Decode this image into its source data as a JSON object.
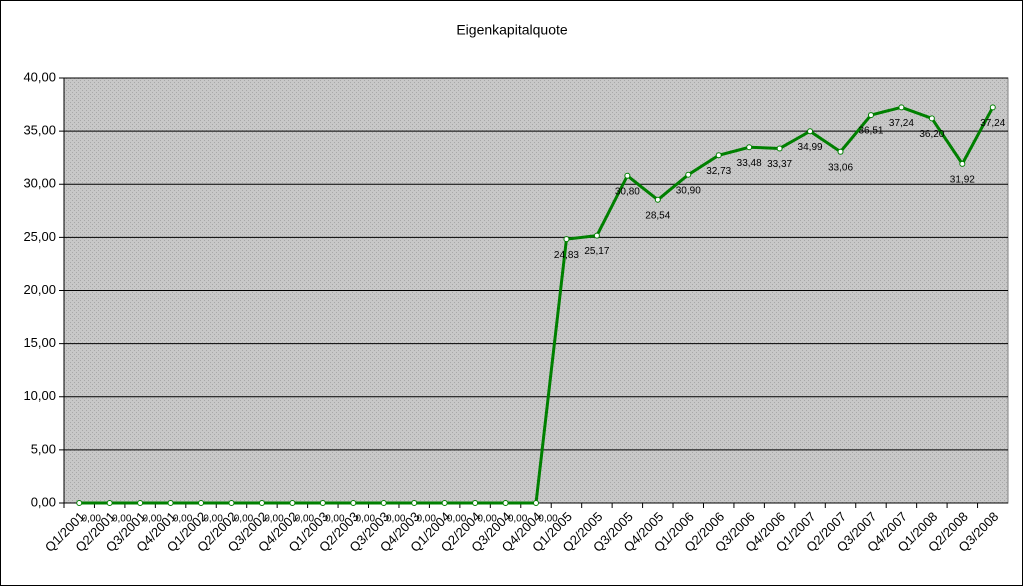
{
  "chart_data": {
    "type": "line",
    "title": "Eigenkapitalquote",
    "categories": [
      "Q1/2001",
      "Q2/2001",
      "Q3/2001",
      "Q4/2001",
      "Q1/2002",
      "Q2/2002",
      "Q3/2002",
      "Q4/2002",
      "Q1/2003",
      "Q2/2003",
      "Q3/2003",
      "Q4/2003",
      "Q1/2004",
      "Q2/2004",
      "Q3/2004",
      "Q4/2004",
      "Q1/2005",
      "Q2/2005",
      "Q3/2005",
      "Q4/2005",
      "Q1/2006",
      "Q2/2006",
      "Q3/2006",
      "Q4/2006",
      "Q1/2007",
      "Q2/2007",
      "Q3/2007",
      "Q4/2007",
      "Q1/2008",
      "Q2/2008",
      "Q3/2008"
    ],
    "values": [
      0,
      0,
      0,
      0,
      0,
      0,
      0,
      0,
      0,
      0,
      0,
      0,
      0,
      0,
      0,
      0,
      24.83,
      25.17,
      30.8,
      28.54,
      30.9,
      32.73,
      33.48,
      33.37,
      34.99,
      33.06,
      36.51,
      37.24,
      36.2,
      31.92,
      37.24
    ],
    "value_labels": [
      "0,00",
      "0,00",
      "0,00",
      "0,00",
      "0,00",
      "0,00",
      "0,00",
      "0,00",
      "0,00",
      "0,00",
      "0,00",
      "0,00",
      "0,00",
      "0,00",
      "0,00",
      "0,00",
      "24,83",
      "25,17",
      "30,80",
      "28,54",
      "30,90",
      "32,73",
      "33,48",
      "33,37",
      "34,99",
      "33,06",
      "36,51",
      "37,24",
      "36,20",
      "31,92",
      "37,24"
    ],
    "color": "#008000",
    "ylim": [
      0,
      40
    ],
    "yticks": [
      {
        "value": 0,
        "label": "0,00"
      },
      {
        "value": 5,
        "label": "5,00"
      },
      {
        "value": 10,
        "label": "10,00"
      },
      {
        "value": 15,
        "label": "15,00"
      },
      {
        "value": 20,
        "label": "20,00"
      },
      {
        "value": 25,
        "label": "25,00"
      },
      {
        "value": 30,
        "label": "30,00"
      },
      {
        "value": 35,
        "label": "35,00"
      },
      {
        "value": 40,
        "label": "40,00"
      }
    ],
    "grid": true
  }
}
